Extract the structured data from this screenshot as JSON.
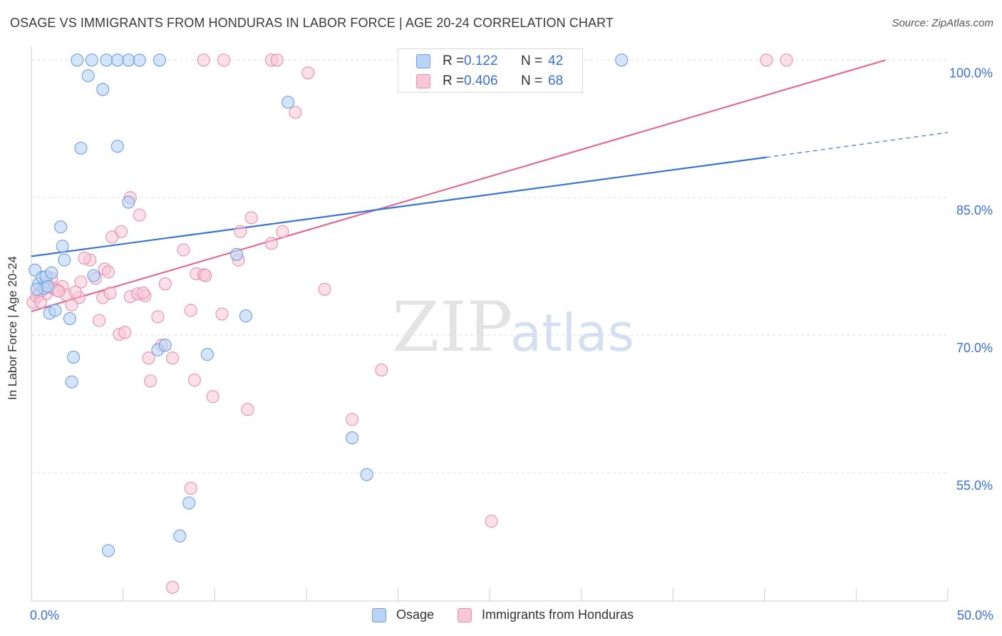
{
  "title": "OSAGE VS IMMIGRANTS FROM HONDURAS IN LABOR FORCE | AGE 20-24 CORRELATION CHART",
  "source": "Source: ZipAtlas.com",
  "watermark": {
    "zip": "ZIP",
    "atlas": "atlas"
  },
  "colors": {
    "osage_fill": "#b9d3f5",
    "osage_stroke": "#6f9fdc",
    "osage_line": "#3a74d0",
    "honduras_fill": "#f8c6d6",
    "honduras_stroke": "#e690b0",
    "honduras_line": "#e06b98",
    "tick_label": "#3a6fd8",
    "grid": "#dddddd"
  },
  "legend": {
    "osage": {
      "r_label": "R =",
      "r_value": "0.122",
      "n_label": "N =",
      "n_value": "42"
    },
    "honduras": {
      "r_label": "R =",
      "r_value": "0.406",
      "n_label": "N =",
      "n_value": "68"
    }
  },
  "chart_data": {
    "type": "scatter",
    "title": "OSAGE VS IMMIGRANTS FROM HONDURAS IN LABOR FORCE | AGE 20-24 CORRELATION CHART",
    "xlabel": "",
    "ylabel": "In Labor Force | Age 20-24",
    "xlim": [
      0,
      50
    ],
    "ylim": [
      41,
      101.5
    ],
    "x_tick_labels": [
      {
        "value": 0,
        "label": "0.0%"
      },
      {
        "value": 50,
        "label": "50.0%"
      }
    ],
    "x_minor_ticks": [
      5,
      10,
      15,
      20,
      25,
      30,
      35,
      40,
      45
    ],
    "y_ticks": [
      {
        "value": 100,
        "label": "100.0%"
      },
      {
        "value": 85,
        "label": "85.0%"
      },
      {
        "value": 70,
        "label": "70.0%"
      },
      {
        "value": 55,
        "label": "55.0%"
      }
    ],
    "grid": true,
    "legend_position": "top-center",
    "series": [
      {
        "name": "Osage",
        "color": "#6f9fdc",
        "r": 0.122,
        "n": 42,
        "trend": {
          "x0": 0,
          "y0": 78.6,
          "x1": 40.1,
          "y1": 89.4,
          "dash_to_x": 50,
          "dash_to_y": 92.1
        },
        "points": [
          [
            2.5,
            100.0
          ],
          [
            3.3,
            100.0
          ],
          [
            4.1,
            100.0
          ],
          [
            4.7,
            100.0
          ],
          [
            5.3,
            100.0
          ],
          [
            5.9,
            100.0
          ],
          [
            7.0,
            100.0
          ],
          [
            24.5,
            100.0
          ],
          [
            32.2,
            100.0
          ],
          [
            3.1,
            98.3
          ],
          [
            3.9,
            96.8
          ],
          [
            14.0,
            95.4
          ],
          [
            2.7,
            90.4
          ],
          [
            4.7,
            90.6
          ],
          [
            5.3,
            84.5
          ],
          [
            1.6,
            81.8
          ],
          [
            1.7,
            79.7
          ],
          [
            1.8,
            78.2
          ],
          [
            11.2,
            78.8
          ],
          [
            0.2,
            77.1
          ],
          [
            0.4,
            75.6
          ],
          [
            0.6,
            76.3
          ],
          [
            0.8,
            76.4
          ],
          [
            1.1,
            76.8
          ],
          [
            0.7,
            75.1
          ],
          [
            0.3,
            75.0
          ],
          [
            3.4,
            76.5
          ],
          [
            1.0,
            72.4
          ],
          [
            1.3,
            72.7
          ],
          [
            2.1,
            71.8
          ],
          [
            11.7,
            72.1
          ],
          [
            2.3,
            67.6
          ],
          [
            6.9,
            68.4
          ],
          [
            7.3,
            68.9
          ],
          [
            9.6,
            67.9
          ],
          [
            2.2,
            64.9
          ],
          [
            17.5,
            58.8
          ],
          [
            18.3,
            54.8
          ],
          [
            8.6,
            51.7
          ],
          [
            8.1,
            48.1
          ],
          [
            4.2,
            46.5
          ],
          [
            0.9,
            75.3
          ]
        ]
      },
      {
        "name": "Immigrants from Honduras",
        "color": "#e690b0",
        "r": 0.406,
        "n": 68,
        "trend": {
          "x0": 0,
          "y0": 72.6,
          "x1": 46.6,
          "y1": 100.0
        },
        "points": [
          [
            9.4,
            100.0
          ],
          [
            10.5,
            100.0
          ],
          [
            13.1,
            100.0
          ],
          [
            13.4,
            100.0
          ],
          [
            40.1,
            100.0
          ],
          [
            41.2,
            100.0
          ],
          [
            15.1,
            98.6
          ],
          [
            14.4,
            94.3
          ],
          [
            5.4,
            85.0
          ],
          [
            5.9,
            83.1
          ],
          [
            12.0,
            82.8
          ],
          [
            11.4,
            81.3
          ],
          [
            4.9,
            81.3
          ],
          [
            13.7,
            81.3
          ],
          [
            4.4,
            80.7
          ],
          [
            8.3,
            79.3
          ],
          [
            13.1,
            80.0
          ],
          [
            3.2,
            78.2
          ],
          [
            2.9,
            78.4
          ],
          [
            11.3,
            78.2
          ],
          [
            4.0,
            77.2
          ],
          [
            4.2,
            76.9
          ],
          [
            9.0,
            76.7
          ],
          [
            9.4,
            76.6
          ],
          [
            1.1,
            76.2
          ],
          [
            0.8,
            75.8
          ],
          [
            1.7,
            75.3
          ],
          [
            2.7,
            75.8
          ],
          [
            3.5,
            76.2
          ],
          [
            7.3,
            75.6
          ],
          [
            0.4,
            74.6
          ],
          [
            0.8,
            74.5
          ],
          [
            1.2,
            75.1
          ],
          [
            1.9,
            74.4
          ],
          [
            2.6,
            74.1
          ],
          [
            3.9,
            74.1
          ],
          [
            5.4,
            74.2
          ],
          [
            5.8,
            74.5
          ],
          [
            6.2,
            74.3
          ],
          [
            16.0,
            75.0
          ],
          [
            0.1,
            73.6
          ],
          [
            2.2,
            73.3
          ],
          [
            8.7,
            72.7
          ],
          [
            10.4,
            72.3
          ],
          [
            6.9,
            72.0
          ],
          [
            3.7,
            71.6
          ],
          [
            4.8,
            70.1
          ],
          [
            5.1,
            70.3
          ],
          [
            7.1,
            68.9
          ],
          [
            6.4,
            67.5
          ],
          [
            7.7,
            67.5
          ],
          [
            19.1,
            66.2
          ],
          [
            6.5,
            65.0
          ],
          [
            8.9,
            65.1
          ],
          [
            9.9,
            63.3
          ],
          [
            11.8,
            61.9
          ],
          [
            17.5,
            60.8
          ],
          [
            8.7,
            53.3
          ],
          [
            25.1,
            49.7
          ],
          [
            7.7,
            42.5
          ],
          [
            4.3,
            74.6
          ],
          [
            1.4,
            74.9
          ],
          [
            2.4,
            74.7
          ],
          [
            6.1,
            74.6
          ],
          [
            0.3,
            74.2
          ],
          [
            9.5,
            76.5
          ],
          [
            1.5,
            74.8
          ],
          [
            0.5,
            73.6
          ]
        ]
      }
    ]
  }
}
